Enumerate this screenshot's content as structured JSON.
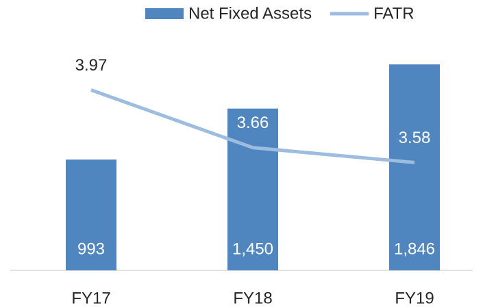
{
  "chart_data": {
    "type": "bar-line",
    "categories": [
      "FY17",
      "FY18",
      "FY19"
    ],
    "series": [
      {
        "name": "Net Fixed Assets",
        "type": "bar",
        "color": "#4f86bf",
        "values": [
          993,
          1450,
          1846
        ],
        "value_labels": [
          "993",
          "1,450",
          "1,846"
        ]
      },
      {
        "name": "FATR",
        "type": "line",
        "axis": "y2",
        "color": "#9dbde0",
        "values": [
          3.97,
          3.66,
          3.58
        ]
      }
    ],
    "ylim": [
      0,
      2000
    ],
    "y2lim": [
      3.0,
      4.2
    ],
    "legend": "top"
  }
}
